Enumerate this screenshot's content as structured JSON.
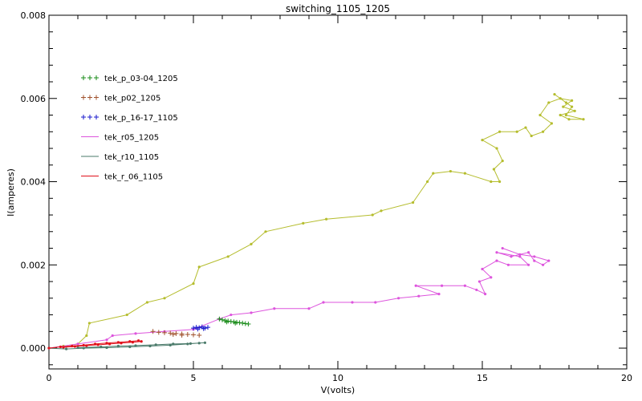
{
  "chart_data": {
    "type": "line",
    "title": "switching_1105_1205",
    "xlabel": "V(volts)",
    "ylabel": "I(amperes)",
    "xlim": [
      0,
      20
    ],
    "ylim": [
      -0.0005,
      0.008
    ],
    "x_ticks": [
      0,
      5,
      10,
      15,
      20
    ],
    "x_tick_labels": [
      "0",
      "5",
      "10",
      "15",
      "20"
    ],
    "y_ticks": [
      0,
      0.002,
      0.004,
      0.006,
      0.008
    ],
    "y_tick_labels": [
      "0.000",
      "0.002",
      "0.004",
      "0.006",
      "0.008"
    ],
    "grid": false,
    "legend_position": "top-left",
    "legend": [
      {
        "label": "tek_p_03-04_1205",
        "color": "#1a8c1a",
        "marker": "+++"
      },
      {
        "label": "tek_p02_1205",
        "color": "#a0522d",
        "marker": "+++"
      },
      {
        "label": "tek_p_16-17_1105",
        "color": "#1a1acc",
        "marker": "+++"
      },
      {
        "label": "tek_r05_1205",
        "color": "#dd55dd",
        "marker": "line"
      },
      {
        "label": "tek_r10_1105",
        "color": "#4a7a6a",
        "marker": "line"
      },
      {
        "label": "tek_r_06_1105",
        "color": "#e0101a",
        "marker": "line"
      }
    ],
    "series": [
      {
        "color": "#b5bd2e",
        "style": "line-dot",
        "points": [
          [
            0,
            0
          ],
          [
            0.5,
            5e-05
          ],
          [
            1.0,
            0.0001
          ],
          [
            1.3,
            0.0003
          ],
          [
            1.4,
            0.0006
          ],
          [
            2.7,
            0.0008
          ],
          [
            3.4,
            0.0011
          ],
          [
            4.0,
            0.0012
          ],
          [
            5.0,
            0.00155
          ],
          [
            5.2,
            0.00195
          ],
          [
            6.2,
            0.0022
          ],
          [
            7.0,
            0.0025
          ],
          [
            7.5,
            0.0028
          ],
          [
            8.8,
            0.003
          ],
          [
            9.6,
            0.0031
          ],
          [
            11.2,
            0.0032
          ],
          [
            11.5,
            0.0033
          ],
          [
            12.6,
            0.0035
          ],
          [
            13.1,
            0.004
          ],
          [
            13.3,
            0.0042
          ],
          [
            13.9,
            0.00425
          ],
          [
            14.4,
            0.0042
          ],
          [
            15.3,
            0.004
          ],
          [
            15.6,
            0.004
          ],
          [
            15.4,
            0.0043
          ],
          [
            15.7,
            0.0045
          ],
          [
            15.5,
            0.0048
          ],
          [
            15.0,
            0.005
          ],
          [
            15.6,
            0.0052
          ],
          [
            16.2,
            0.0052
          ],
          [
            16.5,
            0.0053
          ],
          [
            16.7,
            0.0051
          ],
          [
            17.1,
            0.0052
          ],
          [
            17.4,
            0.0054
          ],
          [
            17.0,
            0.0056
          ],
          [
            17.3,
            0.0059
          ],
          [
            17.7,
            0.006
          ],
          [
            18.1,
            0.00595
          ],
          [
            17.8,
            0.0058
          ],
          [
            18.2,
            0.0057
          ],
          [
            17.7,
            0.0056
          ],
          [
            18.0,
            0.0055
          ],
          [
            18.5,
            0.0055
          ],
          [
            17.9,
            0.0056
          ],
          [
            18.1,
            0.0058
          ],
          [
            17.5,
            0.0061
          ],
          [
            17.9,
            0.0059
          ]
        ]
      },
      {
        "color": "#dd55dd",
        "style": "line-dot",
        "points": [
          [
            0,
            0
          ],
          [
            1.0,
            0.0001
          ],
          [
            2.0,
            0.0002
          ],
          [
            2.2,
            0.0003
          ],
          [
            3.0,
            0.00035
          ],
          [
            4.0,
            0.0004
          ],
          [
            5.0,
            0.00045
          ],
          [
            5.9,
            0.0007
          ],
          [
            6.3,
            0.0008
          ],
          [
            7.0,
            0.00085
          ],
          [
            7.8,
            0.00095
          ],
          [
            9.0,
            0.00095
          ],
          [
            9.5,
            0.0011
          ],
          [
            10.5,
            0.0011
          ],
          [
            11.3,
            0.0011
          ],
          [
            12.1,
            0.0012
          ],
          [
            12.8,
            0.00125
          ],
          [
            13.5,
            0.0013
          ],
          [
            12.7,
            0.0015
          ],
          [
            13.6,
            0.0015
          ],
          [
            14.4,
            0.0015
          ],
          [
            14.8,
            0.0014
          ],
          [
            15.1,
            0.0013
          ],
          [
            14.9,
            0.0016
          ],
          [
            15.3,
            0.0017
          ],
          [
            15.0,
            0.0019
          ],
          [
            15.5,
            0.0021
          ],
          [
            15.9,
            0.002
          ],
          [
            16.6,
            0.002
          ],
          [
            16.3,
            0.0022
          ],
          [
            15.5,
            0.0023
          ],
          [
            16.0,
            0.0022
          ],
          [
            16.6,
            0.0023
          ],
          [
            16.8,
            0.0021
          ],
          [
            17.1,
            0.002
          ],
          [
            17.3,
            0.0021
          ],
          [
            16.8,
            0.0022
          ],
          [
            16.3,
            0.00225
          ],
          [
            15.7,
            0.0024
          ]
        ]
      },
      {
        "color": "#4a7a6a",
        "style": "line-dot",
        "points": [
          [
            0,
            0
          ],
          [
            0.6,
            -2e-05
          ],
          [
            1.2,
            0
          ],
          [
            2.0,
            1e-05
          ],
          [
            2.8,
            3e-05
          ],
          [
            3.5,
            5e-05
          ],
          [
            4.2,
            7e-05
          ],
          [
            4.8,
            0.0001
          ],
          [
            5.2,
            0.00012
          ],
          [
            5.4,
            0.00013
          ],
          [
            4.9,
            0.00011
          ],
          [
            4.3,
            0.0001
          ],
          [
            3.7,
            8e-05
          ],
          [
            3.0,
            6e-05
          ],
          [
            2.4,
            5e-05
          ],
          [
            1.8,
            3e-05
          ],
          [
            1.0,
            1e-05
          ]
        ]
      },
      {
        "color": "#e0101a",
        "style": "line-dot",
        "points": [
          [
            0,
            0
          ],
          [
            0.4,
            3e-05
          ],
          [
            0.8,
            5e-05
          ],
          [
            1.2,
            7e-05
          ],
          [
            1.6,
            0.0001
          ],
          [
            2.0,
            0.00012
          ],
          [
            2.4,
            0.00014
          ],
          [
            2.8,
            0.00016
          ],
          [
            3.1,
            0.00018
          ],
          [
            3.2,
            0.00016
          ],
          [
            2.9,
            0.00014
          ],
          [
            2.5,
            0.00012
          ],
          [
            2.1,
            0.0001
          ],
          [
            1.7,
            8e-05
          ],
          [
            1.3,
            6e-05
          ],
          [
            0.9,
            4e-05
          ],
          [
            0.5,
            2e-05
          ]
        ]
      },
      {
        "color": "#1a8c1a",
        "style": "plus",
        "points": [
          [
            5.9,
            0.0007
          ],
          [
            6.0,
            0.00068
          ],
          [
            6.1,
            0.00066
          ],
          [
            6.2,
            0.00065
          ],
          [
            6.3,
            0.00064
          ],
          [
            6.4,
            0.00063
          ],
          [
            6.5,
            0.00062
          ],
          [
            6.6,
            0.00061
          ],
          [
            6.7,
            0.0006
          ],
          [
            6.8,
            0.00059
          ],
          [
            6.9,
            0.00058
          ],
          [
            6.15,
            0.00063
          ],
          [
            6.45,
            0.0006
          ]
        ]
      },
      {
        "color": "#1a1acc",
        "style": "plus",
        "points": [
          [
            5.0,
            0.00048
          ],
          [
            5.1,
            0.0005
          ],
          [
            5.2,
            0.00049
          ],
          [
            5.3,
            0.00051
          ],
          [
            5.4,
            0.00048
          ],
          [
            5.5,
            0.0005
          ],
          [
            5.15,
            0.00046
          ],
          [
            5.35,
            0.00047
          ]
        ]
      },
      {
        "color": "#a0522d",
        "style": "plus",
        "points": [
          [
            3.6,
            0.0004
          ],
          [
            3.8,
            0.00038
          ],
          [
            4.0,
            0.00037
          ],
          [
            4.2,
            0.00036
          ],
          [
            4.4,
            0.00035
          ],
          [
            4.6,
            0.00034
          ],
          [
            4.8,
            0.00033
          ],
          [
            5.0,
            0.00032
          ],
          [
            5.2,
            0.00031
          ],
          [
            4.3,
            0.00033
          ],
          [
            4.6,
            0.00031
          ]
        ]
      }
    ]
  }
}
